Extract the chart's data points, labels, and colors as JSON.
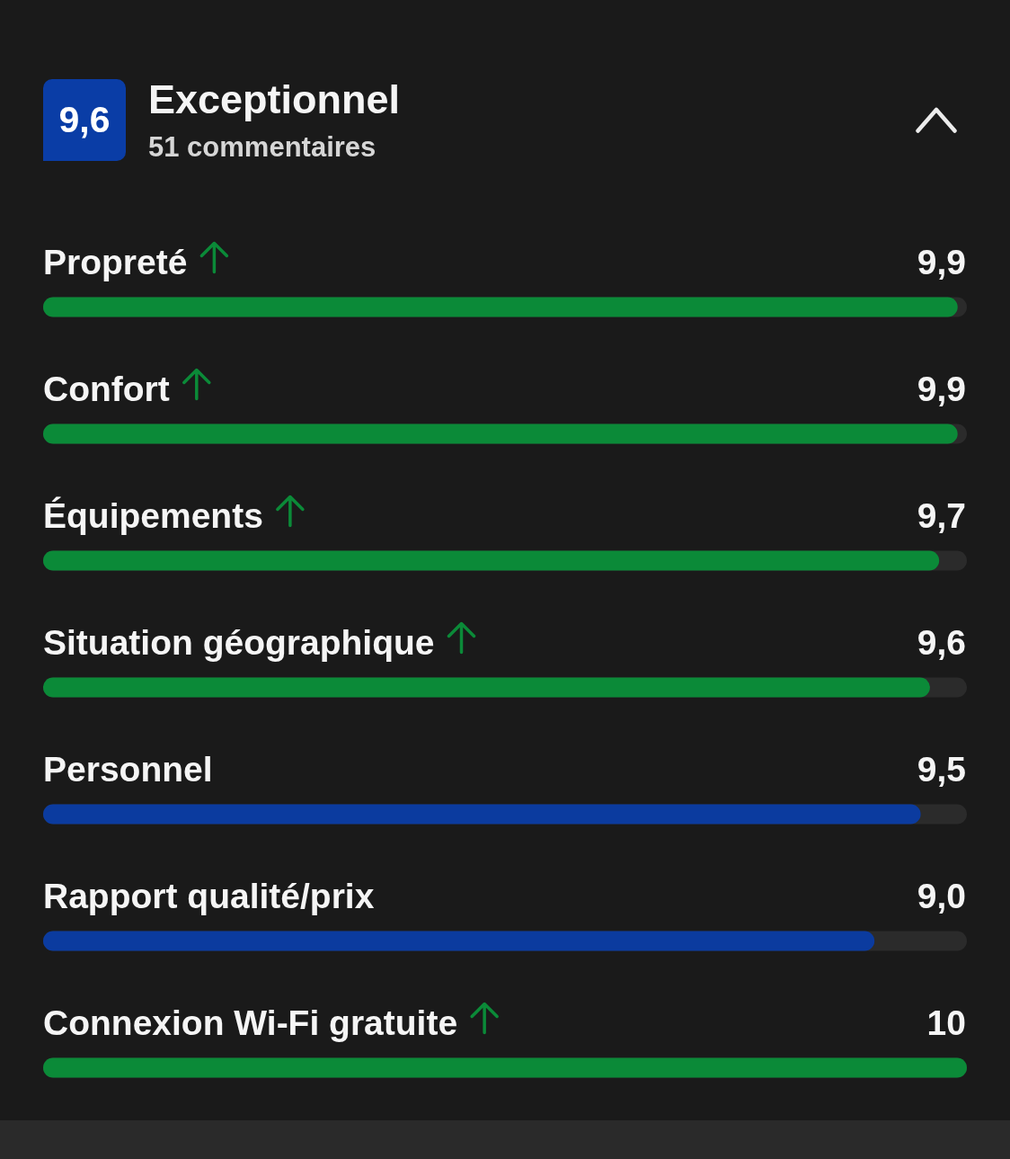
{
  "chart_data": {
    "type": "bar",
    "orientation": "horizontal",
    "title": "Exceptionnel",
    "subtitle": "51 commentaires",
    "annotations": [
      "9,6"
    ],
    "categories": [
      "Propreté",
      "Confort",
      "Équipements",
      "Situation géographique",
      "Personnel",
      "Rapport qualité/prix",
      "Connexion Wi-Fi gratuite"
    ],
    "values": [
      9.9,
      9.9,
      9.7,
      9.6,
      9.5,
      9.0,
      10
    ],
    "value_labels": [
      "9,9",
      "9,9",
      "9,7",
      "9,6",
      "9,5",
      "9,0",
      "10"
    ],
    "colors": [
      "#0b8a38",
      "#0b8a38",
      "#0b8a38",
      "#0b8a38",
      "#0b3b9f",
      "#0b3b9f",
      "#0b8a38"
    ],
    "xlim": [
      0,
      10
    ],
    "tick_labels": "y"
  }
}
